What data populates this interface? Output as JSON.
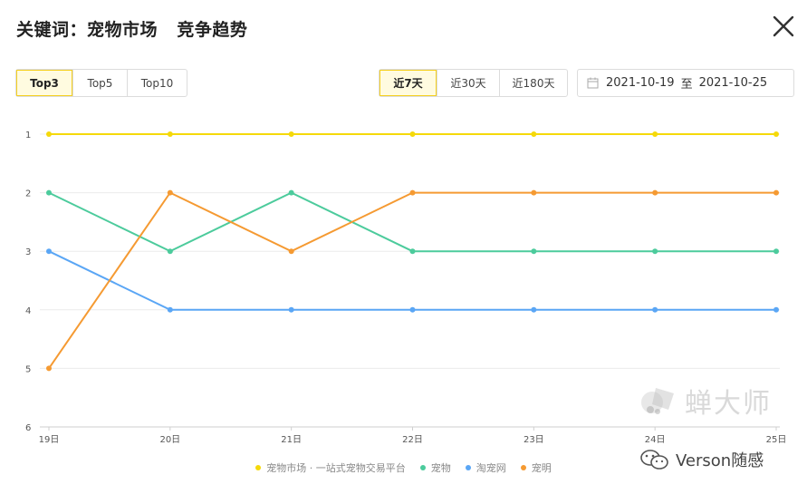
{
  "header": {
    "title": "关键词：宠物市场   竞争趋势",
    "close_icon": "close-icon"
  },
  "top_filter": {
    "options": [
      "Top3",
      "Top5",
      "Top10"
    ],
    "active": "Top3"
  },
  "range_filter": {
    "options": [
      "近7天",
      "近30天",
      "近180天"
    ],
    "active": "近7天"
  },
  "date_range": {
    "start": "2021-10-19",
    "separator": "至",
    "end": "2021-10-25",
    "icon": "calendar-icon"
  },
  "colors": {
    "accent": "#f5d020",
    "series_yellow": "#f5d90a",
    "series_green": "#4ccb9c",
    "series_blue": "#5aa6f5",
    "series_orange": "#f59a32"
  },
  "chart_data": {
    "type": "line",
    "x": [
      "19日",
      "20日",
      "21日",
      "22日",
      "23日",
      "24日",
      "25日"
    ],
    "y_ticks": [
      "1",
      "2",
      "3",
      "4",
      "5",
      "6"
    ],
    "ylim": [
      1,
      6
    ],
    "y_inverted": true,
    "grid": true,
    "legend_position": "bottom",
    "series": [
      {
        "name": "宠物市场 · 一站式宠物交易平台",
        "color": "#f5d90a",
        "values": [
          1,
          1,
          1,
          1,
          1,
          1,
          1
        ]
      },
      {
        "name": "宠物",
        "color": "#4ccb9c",
        "values": [
          2,
          3,
          2,
          3,
          3,
          3,
          3
        ]
      },
      {
        "name": "淘宠网",
        "color": "#5aa6f5",
        "values": [
          3,
          4,
          4,
          4,
          4,
          4,
          4
        ]
      },
      {
        "name": "宠明",
        "color": "#f59a32",
        "values": [
          5,
          2,
          3,
          2,
          2,
          2,
          2
        ]
      }
    ]
  },
  "watermark": {
    "text": "蝉大师",
    "icon": "chan-dashi-logo-icon"
  },
  "wechat_credit": {
    "text": "Verson随感",
    "icon": "wechat-icon"
  }
}
